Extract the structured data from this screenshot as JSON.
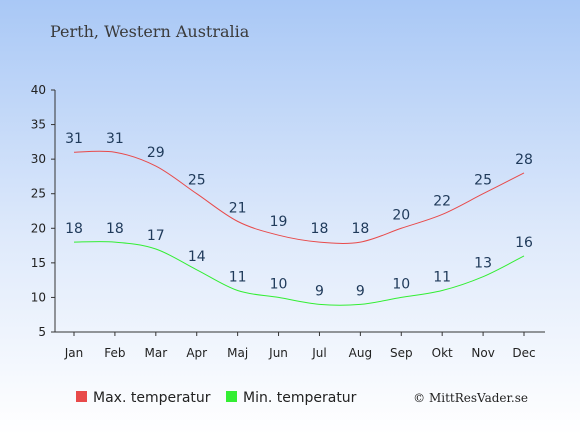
{
  "chart_data": {
    "type": "line",
    "title": "Perth, Western Australia",
    "categories": [
      "Jan",
      "Feb",
      "Mar",
      "Apr",
      "Maj",
      "Jun",
      "Jul",
      "Aug",
      "Sep",
      "Okt",
      "Nov",
      "Dec"
    ],
    "series": [
      {
        "name": "Max. temperatur",
        "color": "#e84a4a",
        "values": [
          31,
          31,
          29,
          25,
          21,
          19,
          18,
          18,
          20,
          22,
          25,
          28
        ]
      },
      {
        "name": "Min. temperatur",
        "color": "#33ee33",
        "values": [
          18,
          18,
          17,
          14,
          11,
          10,
          9,
          9,
          10,
          11,
          13,
          16
        ]
      }
    ],
    "ylim": [
      5,
      40
    ],
    "yticks": [
      5,
      10,
      15,
      20,
      25,
      30,
      35,
      40
    ],
    "grid": false,
    "legend": "bottom-left",
    "label_color": "#1f3a5a"
  },
  "footer": {
    "copyright": "© MittResVader.se"
  }
}
